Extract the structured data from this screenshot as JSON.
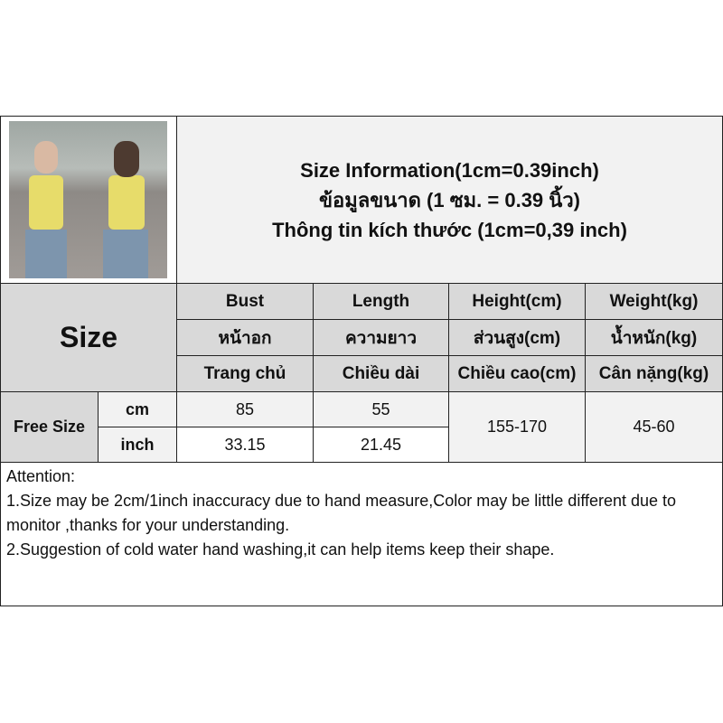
{
  "title_lines": [
    "Size Information(1cm=0.39inch)",
    "ข้อมูลขนาด (1 ซม. = 0.39 นิ้ว)",
    "Thông tin kích thước (1cm=0,39 inch)"
  ],
  "size_label": "Size",
  "columns": [
    {
      "en": "Bust",
      "th": "หน้าอก",
      "vi": "Trang chủ"
    },
    {
      "en": "Length",
      "th": "ความยาว",
      "vi": "Chiều dài"
    },
    {
      "en": "Height(cm)",
      "th": "ส่วนสูง(cm)",
      "vi": "Chiều cao(cm)"
    },
    {
      "en": "Weight(kg)",
      "th": "น้ำหนัก(kg)",
      "vi": "Cân nặng(kg)"
    }
  ],
  "row": {
    "name": "Free Size",
    "cm_label": "cm",
    "inch_label": "inch",
    "bust_cm": "85",
    "length_cm": "55",
    "bust_inch": "33.15",
    "length_inch": "21.45",
    "height": "155-170",
    "weight": "45-60"
  },
  "attention": [
    "Attention:",
    "1.Size may be 2cm/1inch inaccuracy due to hand measure,Color may be little different due to monitor ,thanks for your understanding.",
    "2.Suggestion of cold water hand washing,it can help items keep their shape."
  ]
}
